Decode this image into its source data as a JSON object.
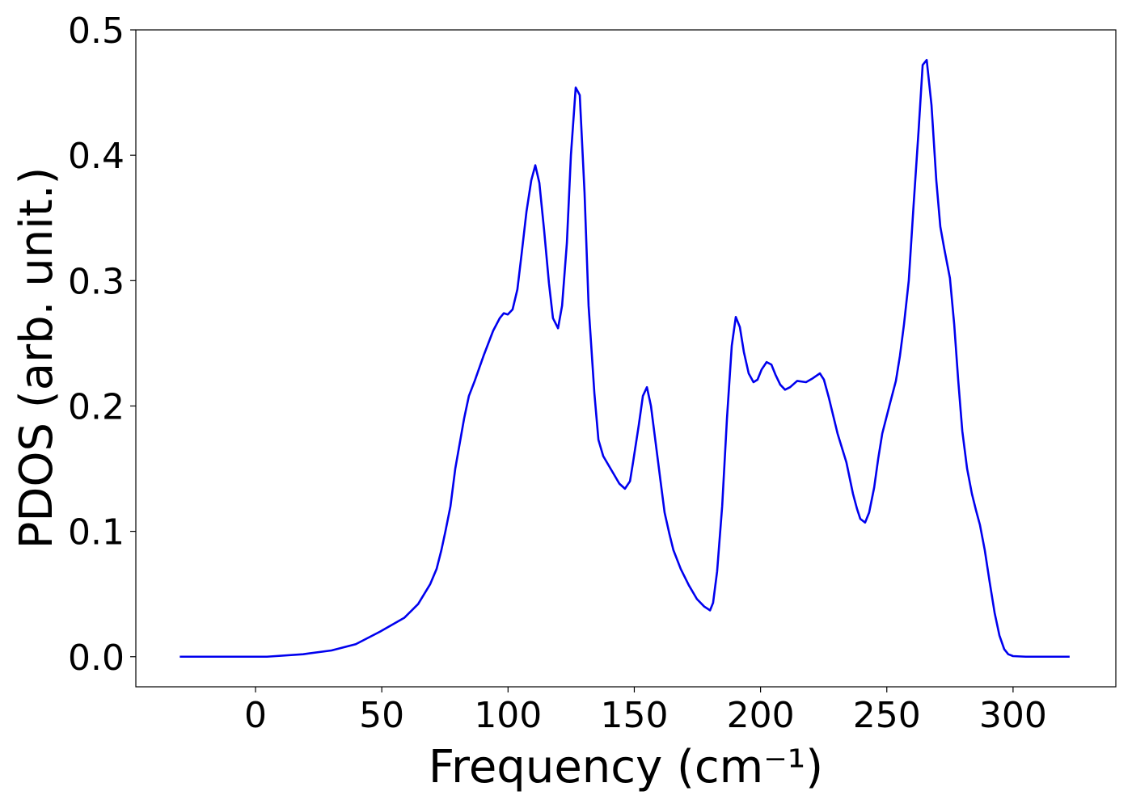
{
  "chart_data": {
    "type": "line",
    "xlabel": "Frequency (cm⁻¹)",
    "ylabel": "PDOS (arb. unit.)",
    "xlim": [
      -47.4,
      340.7
    ],
    "ylim": [
      -0.024,
      0.5
    ],
    "xticks": [
      0,
      50,
      100,
      150,
      200,
      250,
      300
    ],
    "yticks": [
      {
        "value": 0,
        "label": "0.0"
      },
      0.1,
      0.2,
      0.3,
      0.4,
      0.5
    ],
    "grid": false,
    "x": [
      -30,
      4.5,
      18.9,
      30.1,
      39.7,
      49.3,
      58.9,
      64.4,
      69.2,
      71.7,
      73.6,
      75.2,
      77.2,
      79.1,
      82.6,
      84.5,
      86.8,
      90.3,
      94.1,
      96.7,
      98.3,
      99.9,
      101.8,
      103.7,
      105.3,
      107.3,
      109.2,
      110.8,
      112.4,
      114.3,
      116.2,
      117.8,
      119.8,
      121.4,
      123.3,
      124.9,
      126.8,
      128.4,
      130.3,
      131.9,
      134.2,
      135.8,
      137.7,
      140.6,
      144.1,
      146.3,
      148.3,
      149.5,
      151.8,
      153.4,
      155,
      156.6,
      158.5,
      160.4,
      162,
      163.9,
      165.5,
      168.4,
      171.6,
      174.8,
      177.7,
      180,
      181.2,
      182.8,
      184.8,
      186.7,
      188.6,
      190.2,
      191.8,
      193.4,
      195.3,
      197.2,
      198.8,
      200.4,
      202.4,
      204.3,
      205.9,
      207.8,
      209.7,
      211.7,
      214.5,
      218,
      220.6,
      223.5,
      225.1,
      227,
      230.5,
      234,
      236.6,
      238.2,
      239.5,
      241.4,
      243,
      245,
      246.6,
      248.2,
      251,
      253.6,
      255.2,
      256.8,
      258.7,
      260.6,
      262.6,
      264.2,
      265.8,
      267.7,
      269.6,
      271.2,
      272.8,
      275,
      276.7,
      278.3,
      279.9,
      281.8,
      283.7,
      285.3,
      286.9,
      288.8,
      290.7,
      292.7,
      294.6,
      296.5,
      298.1,
      300,
      305,
      322.4
    ],
    "series": [
      {
        "name": "PDOS",
        "color": "#0000ee",
        "values": [
          0,
          0,
          0.002,
          0.005,
          0.01,
          0.02,
          0.031,
          0.042,
          0.058,
          0.07,
          0.085,
          0.1,
          0.12,
          0.15,
          0.19,
          0.208,
          0.22,
          0.24,
          0.26,
          0.27,
          0.274,
          0.273,
          0.277,
          0.293,
          0.32,
          0.355,
          0.38,
          0.392,
          0.378,
          0.34,
          0.298,
          0.27,
          0.262,
          0.28,
          0.33,
          0.4,
          0.454,
          0.448,
          0.37,
          0.28,
          0.21,
          0.173,
          0.16,
          0.15,
          0.138,
          0.134,
          0.14,
          0.155,
          0.185,
          0.208,
          0.215,
          0.2,
          0.17,
          0.14,
          0.115,
          0.098,
          0.085,
          0.07,
          0.057,
          0.046,
          0.04,
          0.037,
          0.043,
          0.068,
          0.12,
          0.19,
          0.248,
          0.271,
          0.263,
          0.243,
          0.226,
          0.219,
          0.221,
          0.229,
          0.235,
          0.233,
          0.225,
          0.217,
          0.213,
          0.215,
          0.22,
          0.219,
          0.222,
          0.226,
          0.221,
          0.207,
          0.178,
          0.155,
          0.13,
          0.118,
          0.11,
          0.107,
          0.115,
          0.135,
          0.158,
          0.178,
          0.2,
          0.22,
          0.24,
          0.265,
          0.3,
          0.36,
          0.42,
          0.472,
          0.476,
          0.44,
          0.38,
          0.343,
          0.325,
          0.302,
          0.265,
          0.22,
          0.18,
          0.15,
          0.13,
          0.117,
          0.105,
          0.085,
          0.06,
          0.035,
          0.017,
          0.006,
          0.002,
          0.0005,
          0,
          0
        ]
      }
    ]
  }
}
